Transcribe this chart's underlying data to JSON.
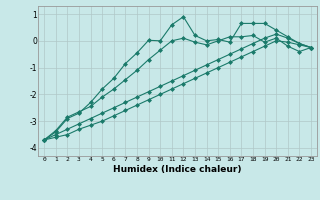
{
  "xlabel": "Humidex (Indice chaleur)",
  "ylabel": "",
  "background_color": "#c8e8e8",
  "grid_color": "#b0c8c8",
  "line_color": "#1a7a6a",
  "xlim": [
    -0.5,
    23.5
  ],
  "ylim": [
    -4.3,
    1.3
  ],
  "x": [
    0,
    1,
    2,
    3,
    4,
    5,
    6,
    7,
    8,
    9,
    10,
    11,
    12,
    13,
    14,
    15,
    16,
    17,
    18,
    19,
    20,
    21,
    22,
    23
  ],
  "line1": [
    -3.7,
    -3.4,
    -2.9,
    -2.7,
    -2.3,
    -1.8,
    -1.4,
    -0.85,
    -0.45,
    0.02,
    0.0,
    0.6,
    0.9,
    0.2,
    0.0,
    0.05,
    -0.05,
    0.65,
    0.65,
    0.65,
    0.4,
    0.15,
    -0.1,
    -0.25
  ],
  "line2": [
    -3.7,
    -3.35,
    -2.85,
    -2.65,
    -2.45,
    -2.1,
    -1.8,
    -1.45,
    -1.1,
    -0.7,
    -0.35,
    0.0,
    0.1,
    -0.05,
    -0.15,
    0.0,
    0.15,
    0.15,
    0.2,
    -0.05,
    0.1,
    -0.2,
    -0.4,
    -0.25
  ],
  "line3": [
    -3.7,
    -3.5,
    -3.3,
    -3.1,
    -2.9,
    -2.7,
    -2.5,
    -2.3,
    -2.1,
    -1.9,
    -1.7,
    -1.5,
    -1.3,
    -1.1,
    -0.9,
    -0.7,
    -0.5,
    -0.3,
    -0.1,
    0.1,
    0.25,
    0.1,
    -0.1,
    -0.25
  ],
  "line4": [
    -3.7,
    -3.6,
    -3.5,
    -3.3,
    -3.15,
    -3.0,
    -2.8,
    -2.6,
    -2.4,
    -2.2,
    -2.0,
    -1.8,
    -1.6,
    -1.4,
    -1.2,
    -1.0,
    -0.8,
    -0.6,
    -0.4,
    -0.2,
    0.0,
    -0.05,
    -0.15,
    -0.25
  ],
  "xtick_labels": [
    "0",
    "1",
    "2",
    "3",
    "4",
    "5",
    "6",
    "7",
    "8",
    "9",
    "10",
    "11",
    "12",
    "13",
    "14",
    "15",
    "16",
    "17",
    "18",
    "19",
    "20",
    "21",
    "22",
    "23"
  ],
  "ytick_labels": [
    "-4",
    "-3",
    "-2",
    "-1",
    "0",
    "1"
  ],
  "ytick_vals": [
    -4,
    -3,
    -2,
    -1,
    0,
    1
  ]
}
